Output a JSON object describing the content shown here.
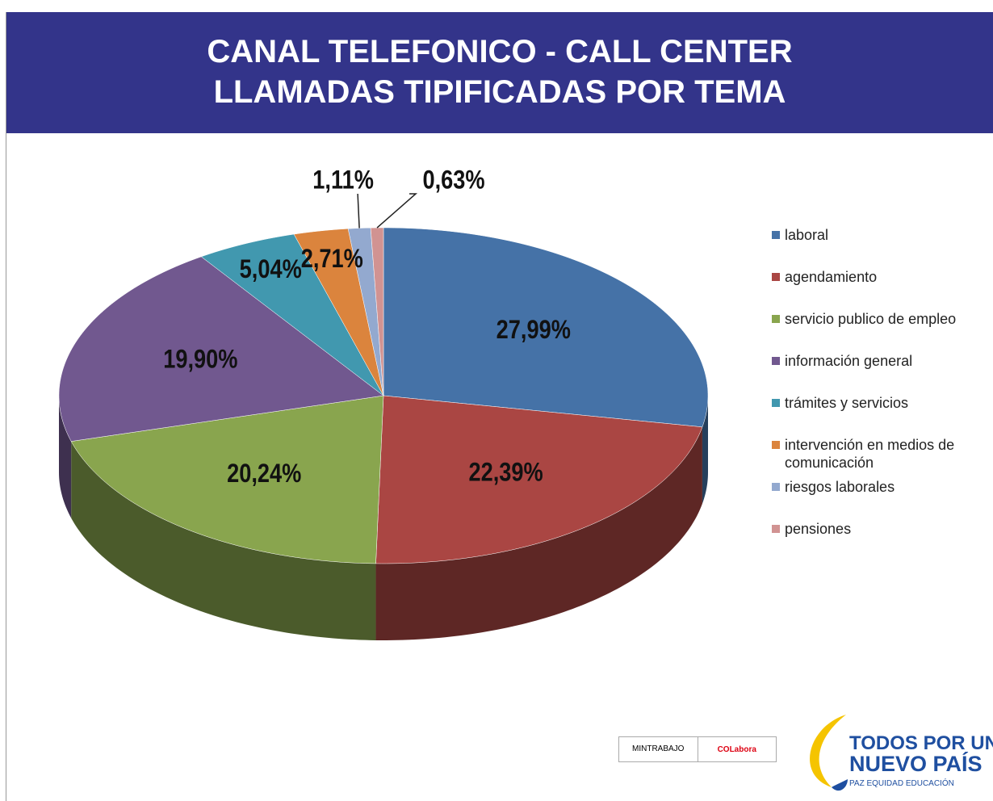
{
  "chart_data": {
    "type": "pie3d",
    "title": "CANAL TELEFONICO - CALL CENTER",
    "subtitle": "LLAMADAS TIPIFICADAS POR TEMA",
    "categories": [
      "laboral",
      "agendamiento",
      "servicio publico de empleo",
      "información general",
      "trámites y servicios",
      "intervención en medios de comunicación",
      "riesgos laborales",
      "pensiones"
    ],
    "values": [
      27.99,
      22.39,
      20.24,
      19.9,
      5.04,
      2.71,
      1.11,
      0.63
    ],
    "value_labels": [
      "27,99%",
      "22,39%",
      "20,24%",
      "19,90%",
      "5,04%",
      "2,71%",
      "1,11%",
      "0,63%"
    ],
    "colors": [
      "#4572a7",
      "#aa4643",
      "#89a54e",
      "#71588f",
      "#4198af",
      "#db843d",
      "#93a9cf",
      "#d19392"
    ],
    "legend": "right"
  },
  "footer": {
    "logo1": "MINTRABAJO",
    "logo2": "COLabora",
    "slogan1": "TODOS POR UN",
    "slogan2": "NUEVO PAÍS",
    "slogan3": "PAZ  EQUIDAD  EDUCACIÓN"
  }
}
